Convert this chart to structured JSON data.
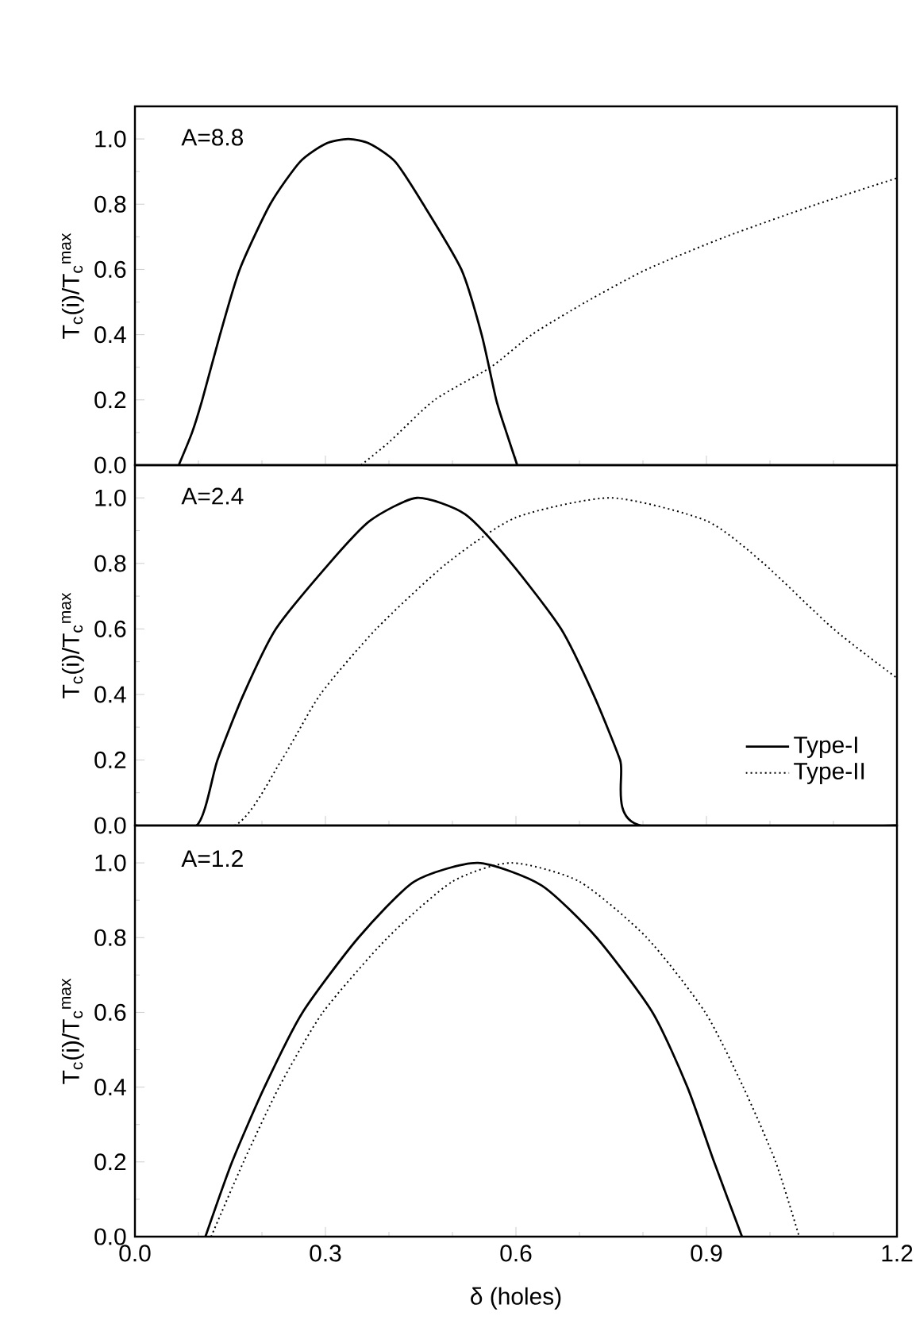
{
  "chart_data": [
    {
      "type": "line",
      "ylabel": "T$_{c}$(i)/T$_{c}$$^{max}$",
      "annotations": [
        "A=8.8"
      ],
      "xlim": [
        0,
        1.2
      ],
      "ylim": [
        0,
        1.1
      ],
      "tick_labels": "y",
      "xticks": [
        {
          "value": 0,
          "label": null
        },
        {
          "value": 0.3,
          "label": null
        },
        {
          "value": 0.6,
          "label": null
        },
        {
          "value": 0.9,
          "label": null
        },
        {
          "value": 1.2,
          "label": null
        }
      ],
      "yticks": [
        {
          "value": 0,
          "label": "0.0"
        },
        {
          "value": 0.2,
          "label": "0.2"
        },
        {
          "value": 0.4,
          "label": "0.4"
        },
        {
          "value": 0.6,
          "label": "0.6"
        },
        {
          "value": 0.8,
          "label": "0.8"
        },
        {
          "value": 1.0,
          "label": "1.0"
        }
      ],
      "series": [
        {
          "color": "#000000",
          "line_style": "solid",
          "x": [
            0.069,
            0.09,
            0.106,
            0.134,
            0.165,
            0.213,
            0.26,
            0.3,
            0.336,
            0.37,
            0.41,
            0.454,
            0.514,
            0.546,
            0.569,
            0.585,
            0.602
          ],
          "values": [
            0,
            0.1,
            0.2,
            0.4,
            0.6,
            0.8,
            0.93,
            0.985,
            1.0,
            0.985,
            0.93,
            0.8,
            0.6,
            0.4,
            0.2,
            0.1,
            0
          ]
        },
        {
          "color": "#000000",
          "line_style": "dotted",
          "x": [
            0.356,
            0.4,
            0.472,
            0.56,
            0.625,
            0.71,
            0.806,
            0.93,
            1.074,
            1.2
          ],
          "values": [
            0,
            0.07,
            0.2,
            0.3,
            0.4,
            0.5,
            0.6,
            0.7,
            0.8,
            0.88
          ]
        }
      ]
    },
    {
      "type": "line",
      "ylabel": "T$_{c}$(i)/T$_{c}$$^{max}$",
      "annotations": [
        "A=2.4"
      ],
      "xlim": [
        0,
        1.2
      ],
      "ylim": [
        0,
        1.1
      ],
      "tick_labels": "y",
      "legend": "bottom right",
      "xticks": [
        {
          "value": 0,
          "label": null
        },
        {
          "value": 0.3,
          "label": null
        },
        {
          "value": 0.6,
          "label": null
        },
        {
          "value": 0.9,
          "label": null
        },
        {
          "value": 1.2,
          "label": null
        }
      ],
      "yticks": [
        {
          "value": 0,
          "label": "0.0"
        },
        {
          "value": 0.2,
          "label": "0.2"
        },
        {
          "value": 0.4,
          "label": "0.4"
        },
        {
          "value": 0.6,
          "label": "0.6"
        },
        {
          "value": 0.8,
          "label": "0.8"
        },
        {
          "value": 1.0,
          "label": "1.0"
        }
      ],
      "series": [
        {
          "name": "Type-I",
          "color": "#000000",
          "line_style": "solid",
          "x": [
            0,
            0.097,
            0.13,
            0.171,
            0.222,
            0.306,
            0.37,
            0.444,
            0.52,
            0.593,
            0.671,
            0.722,
            0.764,
            0.796,
            1.2
          ],
          "values": [
            0,
            0,
            0.2,
            0.4,
            0.6,
            0.8,
            0.93,
            1.0,
            0.95,
            0.8,
            0.6,
            0.4,
            0.2,
            0,
            0
          ]
        },
        {
          "name": "Type-II",
          "color": "#000000",
          "line_style": "dotted",
          "x": [
            0,
            0.157,
            0.231,
            0.292,
            0.38,
            0.491,
            0.6,
            0.75,
            0.9,
            0.99,
            1.1,
            1.2
          ],
          "values": [
            0,
            0,
            0.2,
            0.4,
            0.6,
            0.8,
            0.94,
            1.0,
            0.93,
            0.8,
            0.6,
            0.45
          ]
        }
      ]
    },
    {
      "type": "line",
      "ylabel": "T$_{c}$(i)/T$_{c}$$^{max}$",
      "xlabel": "δ (holes)",
      "annotations": [
        "A=1.2"
      ],
      "xlim": [
        0,
        1.2
      ],
      "ylim": [
        0,
        1.1
      ],
      "xticks": [
        {
          "value": 0,
          "label": "0.0"
        },
        {
          "value": 0.3,
          "label": "0.3"
        },
        {
          "value": 0.6,
          "label": "0.6"
        },
        {
          "value": 0.9,
          "label": "0.9"
        },
        {
          "value": 1.2,
          "label": "1.2"
        }
      ],
      "yticks": [
        {
          "value": 0,
          "label": "0.0"
        },
        {
          "value": 0.2,
          "label": "0.2"
        },
        {
          "value": 0.4,
          "label": "0.4"
        },
        {
          "value": 0.6,
          "label": "0.6"
        },
        {
          "value": 0.8,
          "label": "0.8"
        },
        {
          "value": 1.0,
          "label": "1.0"
        }
      ],
      "series": [
        {
          "color": "#000000",
          "line_style": "solid",
          "x": [
            0.111,
            0.153,
            0.204,
            0.264,
            0.352,
            0.44,
            0.54,
            0.64,
            0.727,
            0.815,
            0.87,
            0.912,
            0.956
          ],
          "values": [
            0,
            0.2,
            0.4,
            0.6,
            0.8,
            0.95,
            1.0,
            0.94,
            0.8,
            0.6,
            0.4,
            0.2,
            0
          ]
        },
        {
          "color": "#000000",
          "line_style": "dotted",
          "x": [
            0.12,
            0.171,
            0.227,
            0.296,
            0.398,
            0.5,
            0.593,
            0.7,
            0.806,
            0.898,
            0.958,
            1.009,
            1.046
          ],
          "values": [
            0,
            0.2,
            0.4,
            0.6,
            0.8,
            0.95,
            1.0,
            0.95,
            0.8,
            0.6,
            0.4,
            0.2,
            0
          ]
        }
      ]
    }
  ]
}
